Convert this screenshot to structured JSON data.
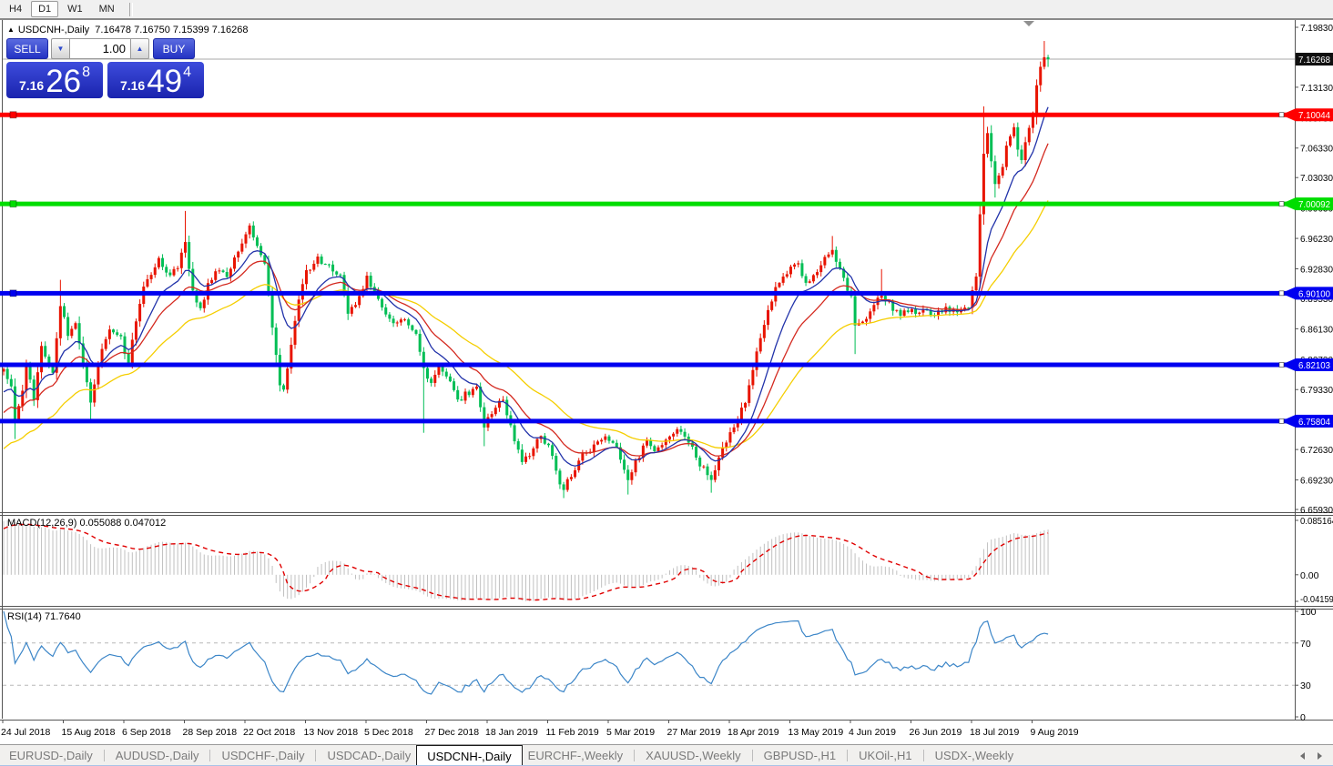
{
  "toolbar": {
    "timeframes": [
      "H4",
      "D1",
      "W1",
      "MN"
    ],
    "active": "D1"
  },
  "title": {
    "symbol": "USDCNH-,Daily",
    "ohlc_text": "7.16478 7.16750 7.15399 7.16268"
  },
  "trade_panel": {
    "sell_label": "SELL",
    "buy_label": "BUY",
    "volume": "1.00",
    "sell_price": {
      "prefix": "7.16",
      "big": "26",
      "sup": "8"
    },
    "buy_price": {
      "prefix": "7.16",
      "big": "49",
      "sup": "4"
    }
  },
  "price_axis": {
    "ticks": [
      "7.19830",
      "7.16430",
      "7.13130",
      "7.09730",
      "7.06330",
      "7.03030",
      "6.99630",
      "6.96230",
      "6.92830",
      "6.89530",
      "6.86130",
      "6.82730",
      "6.79330",
      "6.75930",
      "6.72630",
      "6.69230",
      "6.65930"
    ],
    "current_badge": {
      "label": "7.16268",
      "value": 7.16268,
      "color": "#101010"
    }
  },
  "chart_data": {
    "type": "candlestick",
    "symbol": "USDCNH-",
    "timeframe": "Daily",
    "last_candle": {
      "open": 7.16478,
      "high": 7.1675,
      "low": 7.15399,
      "close": 7.16268
    },
    "bull_color": "#e81400",
    "bear_color": "#00be55",
    "horizontal_lines": [
      {
        "price": 7.10044,
        "label": "7.10044",
        "color": "#ff0000"
      },
      {
        "price": 7.00092,
        "label": "7.00092",
        "color": "#00dd00"
      },
      {
        "price": 6.901,
        "label": "6.90100",
        "color": "#0000f0"
      },
      {
        "price": 6.82103,
        "label": "6.82103",
        "color": "#0000f0"
      },
      {
        "price": 6.75804,
        "label": "6.75804",
        "color": "#0000f0"
      }
    ],
    "moving_averages": [
      {
        "name": "fast",
        "period": 11,
        "color": "#2233aa"
      },
      {
        "name": "medium",
        "period": 20,
        "color": "#d42a20"
      },
      {
        "name": "slow",
        "period": 42,
        "color": "#f5ce00"
      }
    ],
    "anchors": [
      [
        0,
        6.815
      ],
      [
        2,
        6.8
      ],
      [
        3,
        6.758
      ],
      [
        5,
        6.79
      ],
      [
        6,
        6.822
      ],
      [
        8,
        6.782
      ],
      [
        10,
        6.842
      ],
      [
        13,
        6.812
      ],
      [
        15,
        6.888
      ],
      [
        17,
        6.856
      ],
      [
        19,
        6.865
      ],
      [
        21,
        6.822
      ],
      [
        23,
        6.78
      ],
      [
        26,
        6.84
      ],
      [
        28,
        6.862
      ],
      [
        31,
        6.85
      ],
      [
        33,
        6.822
      ],
      [
        35,
        6.872
      ],
      [
        37,
        6.905
      ],
      [
        39,
        6.925
      ],
      [
        41,
        6.938
      ],
      [
        44,
        6.92
      ],
      [
        46,
        6.932
      ],
      [
        48,
        6.958
      ],
      [
        50,
        6.905
      ],
      [
        52,
        6.882
      ],
      [
        54,
        6.912
      ],
      [
        57,
        6.928
      ],
      [
        59,
        6.92
      ],
      [
        61,
        6.938
      ],
      [
        63,
        6.956
      ],
      [
        65,
        6.974
      ],
      [
        67,
        6.955
      ],
      [
        69,
        6.935
      ],
      [
        71,
        6.865
      ],
      [
        73,
        6.8
      ],
      [
        74,
        6.79
      ],
      [
        76,
        6.845
      ],
      [
        78,
        6.895
      ],
      [
        80,
        6.925
      ],
      [
        83,
        6.94
      ],
      [
        86,
        6.93
      ],
      [
        89,
        6.92
      ],
      [
        91,
        6.88
      ],
      [
        94,
        6.895
      ],
      [
        96,
        6.92
      ],
      [
        98,
        6.9
      ],
      [
        101,
        6.88
      ],
      [
        104,
        6.865
      ],
      [
        106,
        6.872
      ],
      [
        109,
        6.858
      ],
      [
        111,
        6.815
      ],
      [
        113,
        6.798
      ],
      [
        115,
        6.818
      ],
      [
        118,
        6.8
      ],
      [
        120,
        6.78
      ],
      [
        122,
        6.788
      ],
      [
        125,
        6.795
      ],
      [
        127,
        6.752
      ],
      [
        130,
        6.775
      ],
      [
        132,
        6.78
      ],
      [
        135,
        6.735
      ],
      [
        137,
        6.712
      ],
      [
        139,
        6.722
      ],
      [
        142,
        6.742
      ],
      [
        144,
        6.73
      ],
      [
        147,
        6.69
      ],
      [
        148,
        6.682
      ],
      [
        151,
        6.705
      ],
      [
        153,
        6.72
      ],
      [
        156,
        6.73
      ],
      [
        159,
        6.74
      ],
      [
        162,
        6.728
      ],
      [
        165,
        6.69
      ],
      [
        167,
        6.712
      ],
      [
        170,
        6.735
      ],
      [
        172,
        6.725
      ],
      [
        175,
        6.738
      ],
      [
        178,
        6.748
      ],
      [
        181,
        6.735
      ],
      [
        184,
        6.71
      ],
      [
        187,
        6.692
      ],
      [
        189,
        6.72
      ],
      [
        192,
        6.745
      ],
      [
        194,
        6.762
      ],
      [
        196,
        6.778
      ],
      [
        198,
        6.815
      ],
      [
        200,
        6.85
      ],
      [
        203,
        6.895
      ],
      [
        205,
        6.915
      ],
      [
        208,
        6.928
      ],
      [
        210,
        6.935
      ],
      [
        212,
        6.91
      ],
      [
        214,
        6.922
      ],
      [
        217,
        6.94
      ],
      [
        219,
        6.948
      ],
      [
        221,
        6.93
      ],
      [
        224,
        6.895
      ],
      [
        225,
        6.862
      ],
      [
        228,
        6.87
      ],
      [
        230,
        6.885
      ],
      [
        232,
        6.9
      ],
      [
        235,
        6.884
      ],
      [
        237,
        6.878
      ],
      [
        240,
        6.882
      ],
      [
        243,
        6.88
      ],
      [
        246,
        6.878
      ],
      [
        249,
        6.884
      ],
      [
        252,
        6.88
      ],
      [
        255,
        6.888
      ],
      [
        257,
        6.92
      ],
      [
        258,
        6.99
      ],
      [
        259,
        7.055
      ],
      [
        260,
        7.08
      ],
      [
        261,
        7.05
      ],
      [
        262,
        7.025
      ],
      [
        264,
        7.04
      ],
      [
        265,
        7.065
      ],
      [
        267,
        7.088
      ],
      [
        268,
        7.06
      ],
      [
        269,
        7.052
      ],
      [
        271,
        7.085
      ],
      [
        272,
        7.095
      ],
      [
        273,
        7.135
      ],
      [
        274,
        7.155
      ],
      [
        275,
        7.165
      ],
      [
        276,
        7.16268
      ]
    ],
    "wick_high_overrides": [
      [
        15,
        6.916
      ],
      [
        48,
        6.993
      ],
      [
        219,
        6.965
      ],
      [
        232,
        6.928
      ],
      [
        259,
        7.11
      ],
      [
        273,
        7.14
      ],
      [
        275,
        7.183
      ]
    ],
    "wick_low_overrides": [
      [
        3,
        6.738
      ],
      [
        23,
        6.757
      ],
      [
        111,
        6.745
      ],
      [
        127,
        6.73
      ],
      [
        148,
        6.672
      ],
      [
        165,
        6.676
      ],
      [
        187,
        6.678
      ],
      [
        225,
        6.833
      ],
      [
        262,
        7.008
      ]
    ]
  },
  "macd": {
    "label": "MACD(12,26,9)",
    "value_main": "0.055088",
    "value_signal": "0.047012",
    "axis_max": {
      "label": "0.085164",
      "value": 0.085164
    },
    "axis_zero": {
      "label": "0.00",
      "value": 0
    },
    "axis_min": {
      "label": "-0.041597",
      "value": -0.041597
    },
    "histogram_color": "#c0c0c0",
    "signal_color": "#e00000"
  },
  "rsi": {
    "label": "RSI(14)",
    "value": "71.7640",
    "axis": [
      "100",
      "70",
      "30",
      "0"
    ],
    "levels": [
      70,
      30
    ],
    "line_color": "#3c86c8"
  },
  "date_axis": {
    "labels": [
      "24 Jul 2018",
      "15 Aug 2018",
      "6 Sep 2018",
      "28 Sep 2018",
      "22 Oct 2018",
      "13 Nov 2018",
      "5 Dec 2018",
      "27 Dec 2018",
      "18 Jan 2019",
      "11 Feb 2019",
      "5 Mar 2019",
      "27 Mar 2019",
      "18 Apr 2019",
      "13 May 2019",
      "4 Jun 2019",
      "26 Jun 2019",
      "18 Jul 2019",
      "9 Aug 2019"
    ]
  },
  "tabs": {
    "items": [
      "EURUSD-,Daily",
      "AUDUSD-,Daily",
      "USDCHF-,Daily",
      "USDCAD-,Daily",
      "USDCNH-,Daily",
      "EURCHF-,Weekly",
      "XAUUSD-,Weekly",
      "GBPUSD-,H1",
      "UKOil-,H1",
      "USDX-,Weekly"
    ],
    "active_index": 4
  }
}
